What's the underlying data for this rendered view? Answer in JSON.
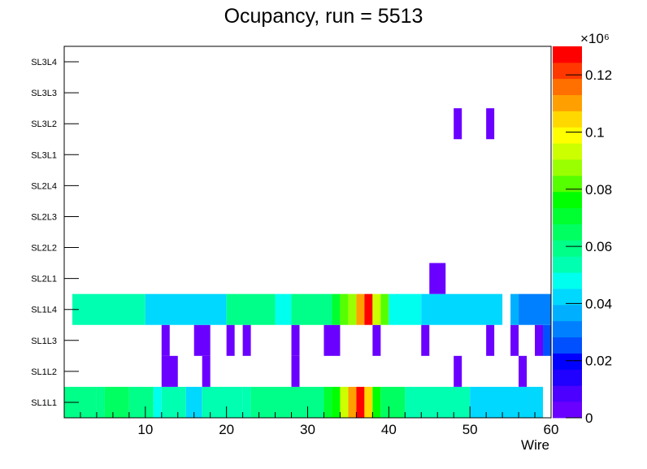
{
  "chart_data": {
    "type": "heatmap",
    "title": "Ocupancy, run = 5513",
    "xlabel": "Wire",
    "ylabel": "",
    "xlim": [
      0,
      60
    ],
    "x_ticks": [
      10,
      20,
      30,
      40,
      50,
      60
    ],
    "rows": [
      "SL1L1",
      "SL1L2",
      "SL1L3",
      "SL1L4",
      "SL2L1",
      "SL2L2",
      "SL2L3",
      "SL2L4",
      "SL3L1",
      "SL3L2",
      "SL3L3",
      "SL3L4"
    ],
    "z_range": [
      0,
      130000
    ],
    "z_ticks": [
      0,
      0.02,
      0.04,
      0.06,
      0.08,
      0.1,
      0.12
    ],
    "z_exponent_label": "×10⁶",
    "z_tick_scale": 1000000,
    "palette": [
      "#6a00ff",
      "#4c00ff",
      "#2000ff",
      "#0000ff",
      "#0050ff",
      "#0080ff",
      "#00b0ff",
      "#00d8ff",
      "#00ffee",
      "#00ffb0",
      "#00ff88",
      "#00ff60",
      "#00ff30",
      "#00ff00",
      "#55ff00",
      "#9aff00",
      "#ccff00",
      "#ffff00",
      "#ffd800",
      "#ffa000",
      "#ff7000",
      "#ff3800",
      "#ff0000"
    ],
    "cells": {
      "SL1L1": [
        [
          1,
          4,
          62000
        ],
        [
          5,
          5,
          60000
        ],
        [
          6,
          8,
          67000
        ],
        [
          9,
          11,
          58000
        ],
        [
          12,
          12,
          48000
        ],
        [
          13,
          15,
          55000
        ],
        [
          16,
          17,
          43000
        ],
        [
          18,
          22,
          56000
        ],
        [
          23,
          23,
          52000
        ],
        [
          24,
          32,
          60000
        ],
        [
          33,
          33,
          70000
        ],
        [
          34,
          34,
          78000
        ],
        [
          35,
          35,
          92000
        ],
        [
          36,
          36,
          110000
        ],
        [
          37,
          37,
          125000
        ],
        [
          38,
          38,
          105000
        ],
        [
          39,
          39,
          76000
        ],
        [
          40,
          42,
          64000
        ],
        [
          43,
          50,
          52000
        ],
        [
          51,
          59,
          40000
        ]
      ],
      "SL1L2": [
        [
          13,
          14,
          3000
        ],
        [
          18,
          18,
          3000
        ],
        [
          29,
          29,
          3000
        ],
        [
          49,
          49,
          3000
        ],
        [
          57,
          57,
          3000
        ]
      ],
      "SL1L3": [
        [
          13,
          13,
          3000
        ],
        [
          17,
          18,
          3000
        ],
        [
          21,
          21,
          3000
        ],
        [
          23,
          23,
          3000
        ],
        [
          29,
          29,
          3000
        ],
        [
          33,
          34,
          3000
        ],
        [
          39,
          39,
          3000
        ],
        [
          45,
          45,
          3000
        ],
        [
          53,
          53,
          3000
        ],
        [
          56,
          56,
          3000
        ],
        [
          59,
          59,
          3000
        ],
        [
          60,
          60,
          28000
        ]
      ],
      "SL1L4": [
        [
          2,
          10,
          55000
        ],
        [
          11,
          20,
          45000
        ],
        [
          21,
          26,
          58000
        ],
        [
          27,
          28,
          48000
        ],
        [
          29,
          33,
          58000
        ],
        [
          34,
          34,
          70000
        ],
        [
          35,
          35,
          80000
        ],
        [
          36,
          36,
          90000
        ],
        [
          37,
          37,
          110000
        ],
        [
          38,
          38,
          125000
        ],
        [
          39,
          39,
          95000
        ],
        [
          40,
          40,
          80000
        ],
        [
          41,
          44,
          50000
        ],
        [
          45,
          54,
          40000
        ],
        [
          56,
          56,
          38000
        ],
        [
          57,
          60,
          32000
        ]
      ],
      "SL2L1": [
        [
          46,
          47,
          3000
        ]
      ],
      "SL3L2": [
        [
          49,
          49,
          3000
        ],
        [
          53,
          53,
          3000
        ]
      ]
    }
  }
}
